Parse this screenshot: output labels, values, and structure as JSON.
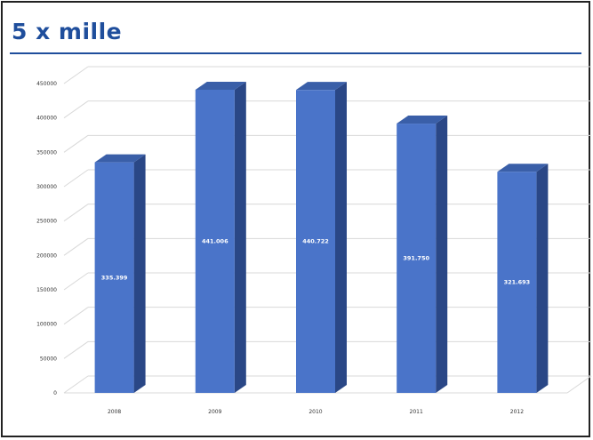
{
  "header": {
    "title": "5 x mille"
  },
  "chart_data": {
    "type": "bar",
    "title": "",
    "xlabel": "",
    "ylabel": "",
    "categories": [
      "2008",
      "2009",
      "2010",
      "2011",
      "2012"
    ],
    "values": [
      335399,
      441006,
      440722,
      391750,
      321693
    ],
    "data_labels": [
      "335.399",
      "441.006",
      "440.722",
      "391.750",
      "321.693"
    ],
    "ylim": [
      0,
      450000
    ],
    "yticks": [
      0,
      50000,
      100000,
      150000,
      200000,
      250000,
      300000,
      350000,
      400000,
      450000
    ],
    "grid": true,
    "style": "3d-column",
    "colors": {
      "front": "#4a74c9",
      "side": "#2a4786",
      "top": "#3a5fa8",
      "grid": "#d8d8d8",
      "title": "#1f4e9c"
    }
  }
}
